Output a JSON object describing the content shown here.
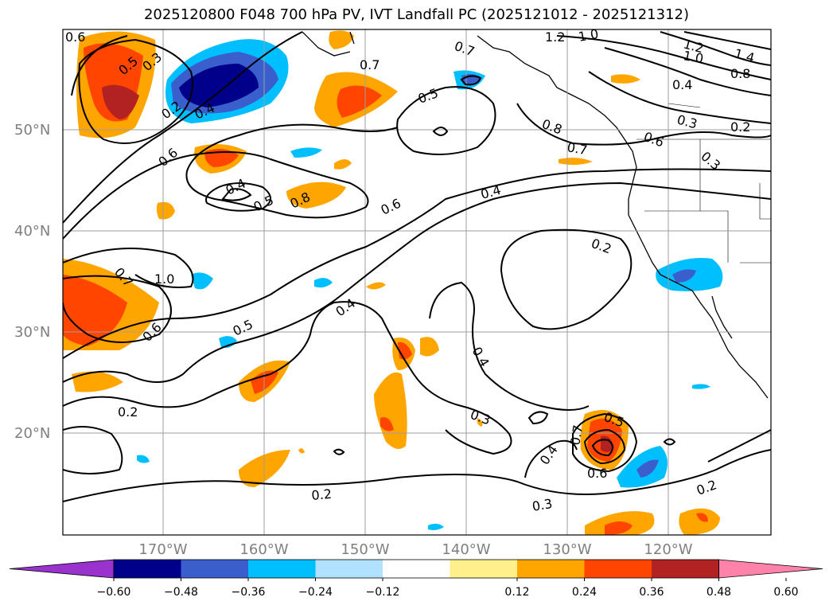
{
  "title": "2025120800 F048 700 hPa PV, IVT Landfall PC (2025121012 - 2025121312)",
  "lat_labels": [
    "50°N",
    "40°N",
    "30°N",
    "20°N"
  ],
  "lon_labels": [
    "170°W",
    "160°W",
    "150°W",
    "140°W",
    "130°W",
    "120°W"
  ],
  "colorbar": {
    "ticks": [
      "−0.60",
      "−0.48",
      "−0.36",
      "−0.24",
      "−0.12",
      "0.12",
      "0.24",
      "0.36",
      "0.48",
      "0.60"
    ],
    "colors": [
      "#9a32cd",
      "#00008b",
      "#3a5fcd",
      "#00bfff",
      "#b0e2ff",
      "#ffffff",
      "#fff08c",
      "#ffa500",
      "#ff4500",
      "#b22222",
      "#ff82ab"
    ]
  },
  "contour_labels": [
    "0.6",
    "0.5",
    "0.3",
    "0.2",
    "0.4",
    "0.7",
    "0.5",
    "0.7",
    "1.2",
    "1.0",
    "1.2",
    "1.0",
    "1.4",
    "0.8",
    "0.4",
    "0.3",
    "0.2",
    "0.3",
    "0.6",
    "0.8",
    "0.7",
    "0.6",
    "0.4",
    "0.5",
    "0.8",
    "0.6",
    "0.4",
    "0.2",
    "1.0",
    "0.7",
    "0.6",
    "0.5",
    "0.4",
    "0.4",
    "0.2",
    "0.3",
    "0.4",
    "0.5",
    "0.7",
    "0.6",
    "0.3",
    "0.2"
  ]
}
